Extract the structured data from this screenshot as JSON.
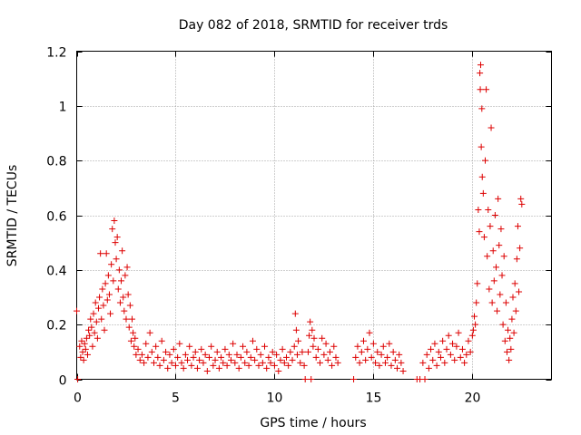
{
  "chart_data": {
    "type": "scatter",
    "title": "Day 082 of 2018, SRMTID for receiver trds",
    "xlabel": "GPS time / hours",
    "ylabel": "SRMTID / TECUs",
    "xlim": [
      0,
      24
    ],
    "ylim": [
      0,
      1.2
    ],
    "xticks": [
      0,
      5,
      10,
      15,
      20
    ],
    "xtick_labels": [
      "0",
      "5",
      "10",
      "15",
      "20"
    ],
    "yticks": [
      0,
      0.2,
      0.4,
      0.6,
      0.8,
      1.0,
      1.2
    ],
    "ytick_labels": [
      "0",
      "0.2",
      "0.4",
      "0.6",
      "0.8",
      "1",
      "1.2"
    ],
    "grid": true,
    "marker": "+",
    "marker_color": "#dd0000",
    "series": [
      {
        "name": "SRMTID",
        "points": [
          [
            0.0,
            0.25
          ],
          [
            0.05,
            0.0
          ],
          [
            0.15,
            0.12
          ],
          [
            0.2,
            0.08
          ],
          [
            0.25,
            0.14
          ],
          [
            0.3,
            0.1
          ],
          [
            0.35,
            0.07
          ],
          [
            0.4,
            0.13
          ],
          [
            0.45,
            0.11
          ],
          [
            0.5,
            0.15
          ],
          [
            0.55,
            0.09
          ],
          [
            0.6,
            0.18
          ],
          [
            0.65,
            0.16
          ],
          [
            0.7,
            0.22
          ],
          [
            0.75,
            0.19
          ],
          [
            0.8,
            0.12
          ],
          [
            0.85,
            0.24
          ],
          [
            0.9,
            0.17
          ],
          [
            0.95,
            0.28
          ],
          [
            1.0,
            0.21
          ],
          [
            1.05,
            0.15
          ],
          [
            1.1,
            0.26
          ],
          [
            1.15,
            0.3
          ],
          [
            1.2,
            0.46
          ],
          [
            1.25,
            0.22
          ],
          [
            1.3,
            0.33
          ],
          [
            1.35,
            0.27
          ],
          [
            1.4,
            0.18
          ],
          [
            1.45,
            0.35
          ],
          [
            1.5,
            0.46
          ],
          [
            1.55,
            0.29
          ],
          [
            1.6,
            0.38
          ],
          [
            1.65,
            0.31
          ],
          [
            1.7,
            0.24
          ],
          [
            1.75,
            0.42
          ],
          [
            1.8,
            0.55
          ],
          [
            1.85,
            0.36
          ],
          [
            1.9,
            0.58
          ],
          [
            1.95,
            0.5
          ],
          [
            2.0,
            0.44
          ],
          [
            2.05,
            0.52
          ],
          [
            2.1,
            0.33
          ],
          [
            2.15,
            0.4
          ],
          [
            2.2,
            0.28
          ],
          [
            2.25,
            0.36
          ],
          [
            2.3,
            0.47
          ],
          [
            2.35,
            0.3
          ],
          [
            2.4,
            0.25
          ],
          [
            2.45,
            0.38
          ],
          [
            2.5,
            0.22
          ],
          [
            2.55,
            0.41
          ],
          [
            2.6,
            0.31
          ],
          [
            2.65,
            0.19
          ],
          [
            2.7,
            0.27
          ],
          [
            2.75,
            0.14
          ],
          [
            2.8,
            0.22
          ],
          [
            2.85,
            0.17
          ],
          [
            2.9,
            0.12
          ],
          [
            2.95,
            0.15
          ],
          [
            3.0,
            0.09
          ],
          [
            3.1,
            0.11
          ],
          [
            3.2,
            0.07
          ],
          [
            3.3,
            0.09
          ],
          [
            3.4,
            0.06
          ],
          [
            3.5,
            0.13
          ],
          [
            3.6,
            0.08
          ],
          [
            3.7,
            0.17
          ],
          [
            3.8,
            0.1
          ],
          [
            3.9,
            0.06
          ],
          [
            4.0,
            0.12
          ],
          [
            4.1,
            0.08
          ],
          [
            4.2,
            0.05
          ],
          [
            4.3,
            0.14
          ],
          [
            4.4,
            0.07
          ],
          [
            4.5,
            0.1
          ],
          [
            4.6,
            0.04
          ],
          [
            4.7,
            0.09
          ],
          [
            4.8,
            0.06
          ],
          [
            4.9,
            0.11
          ],
          [
            5.0,
            0.05
          ],
          [
            5.1,
            0.08
          ],
          [
            5.2,
            0.13
          ],
          [
            5.3,
            0.06
          ],
          [
            5.4,
            0.04
          ],
          [
            5.5,
            0.09
          ],
          [
            5.6,
            0.07
          ],
          [
            5.7,
            0.12
          ],
          [
            5.8,
            0.05
          ],
          [
            5.9,
            0.08
          ],
          [
            6.0,
            0.1
          ],
          [
            6.1,
            0.04
          ],
          [
            6.2,
            0.07
          ],
          [
            6.3,
            0.11
          ],
          [
            6.4,
            0.06
          ],
          [
            6.5,
            0.09
          ],
          [
            6.6,
            0.03
          ],
          [
            6.7,
            0.08
          ],
          [
            6.8,
            0.12
          ],
          [
            6.9,
            0.05
          ],
          [
            7.0,
            0.07
          ],
          [
            7.1,
            0.1
          ],
          [
            7.2,
            0.04
          ],
          [
            7.3,
            0.08
          ],
          [
            7.4,
            0.06
          ],
          [
            7.5,
            0.11
          ],
          [
            7.6,
            0.05
          ],
          [
            7.7,
            0.09
          ],
          [
            7.8,
            0.07
          ],
          [
            7.9,
            0.13
          ],
          [
            8.0,
            0.06
          ],
          [
            8.1,
            0.09
          ],
          [
            8.2,
            0.04
          ],
          [
            8.3,
            0.08
          ],
          [
            8.4,
            0.12
          ],
          [
            8.5,
            0.06
          ],
          [
            8.6,
            0.1
          ],
          [
            8.7,
            0.05
          ],
          [
            8.8,
            0.08
          ],
          [
            8.9,
            0.14
          ],
          [
            9.0,
            0.07
          ],
          [
            9.1,
            0.11
          ],
          [
            9.2,
            0.05
          ],
          [
            9.3,
            0.09
          ],
          [
            9.4,
            0.06
          ],
          [
            9.5,
            0.12
          ],
          [
            9.6,
            0.04
          ],
          [
            9.7,
            0.08
          ],
          [
            9.8,
            0.06
          ],
          [
            9.9,
            0.1
          ],
          [
            10.0,
            0.05
          ],
          [
            10.1,
            0.09
          ],
          [
            10.2,
            0.03
          ],
          [
            10.3,
            0.07
          ],
          [
            10.4,
            0.11
          ],
          [
            10.5,
            0.06
          ],
          [
            10.6,
            0.08
          ],
          [
            10.7,
            0.05
          ],
          [
            10.8,
            0.1
          ],
          [
            10.9,
            0.07
          ],
          [
            11.0,
            0.12
          ],
          [
            11.05,
            0.24
          ],
          [
            11.1,
            0.18
          ],
          [
            11.15,
            0.09
          ],
          [
            11.2,
            0.14
          ],
          [
            11.3,
            0.06
          ],
          [
            11.4,
            0.1
          ],
          [
            11.5,
            0.05
          ],
          [
            11.55,
            0.0
          ],
          [
            11.7,
            0.1
          ],
          [
            11.75,
            0.16
          ],
          [
            11.8,
            0.21
          ],
          [
            11.85,
            0.0
          ],
          [
            11.9,
            0.18
          ],
          [
            11.95,
            0.12
          ],
          [
            12.0,
            0.15
          ],
          [
            12.1,
            0.08
          ],
          [
            12.2,
            0.11
          ],
          [
            12.3,
            0.06
          ],
          [
            12.4,
            0.15
          ],
          [
            12.5,
            0.09
          ],
          [
            12.6,
            0.13
          ],
          [
            12.7,
            0.07
          ],
          [
            12.8,
            0.1
          ],
          [
            12.9,
            0.05
          ],
          [
            13.0,
            0.12
          ],
          [
            13.1,
            0.08
          ],
          [
            13.2,
            0.06
          ],
          [
            14.0,
            0.0
          ],
          [
            14.1,
            0.08
          ],
          [
            14.2,
            0.12
          ],
          [
            14.3,
            0.06
          ],
          [
            14.4,
            0.1
          ],
          [
            14.5,
            0.14
          ],
          [
            14.6,
            0.07
          ],
          [
            14.7,
            0.11
          ],
          [
            14.8,
            0.17
          ],
          [
            14.9,
            0.08
          ],
          [
            15.0,
            0.13
          ],
          [
            15.1,
            0.06
          ],
          [
            15.2,
            0.1
          ],
          [
            15.3,
            0.05
          ],
          [
            15.4,
            0.09
          ],
          [
            15.5,
            0.12
          ],
          [
            15.6,
            0.06
          ],
          [
            15.7,
            0.08
          ],
          [
            15.8,
            0.13
          ],
          [
            15.9,
            0.05
          ],
          [
            16.0,
            0.1
          ],
          [
            16.1,
            0.07
          ],
          [
            16.2,
            0.04
          ],
          [
            16.3,
            0.09
          ],
          [
            16.4,
            0.06
          ],
          [
            16.5,
            0.03
          ],
          [
            17.2,
            0.0
          ],
          [
            17.35,
            0.0
          ],
          [
            17.5,
            0.06
          ],
          [
            17.6,
            0.0
          ],
          [
            17.7,
            0.09
          ],
          [
            17.8,
            0.04
          ],
          [
            17.9,
            0.11
          ],
          [
            18.0,
            0.07
          ],
          [
            18.1,
            0.13
          ],
          [
            18.2,
            0.05
          ],
          [
            18.3,
            0.1
          ],
          [
            18.4,
            0.08
          ],
          [
            18.5,
            0.14
          ],
          [
            18.6,
            0.06
          ],
          [
            18.7,
            0.11
          ],
          [
            18.8,
            0.16
          ],
          [
            18.9,
            0.09
          ],
          [
            19.0,
            0.13
          ],
          [
            19.1,
            0.07
          ],
          [
            19.2,
            0.12
          ],
          [
            19.3,
            0.17
          ],
          [
            19.4,
            0.08
          ],
          [
            19.5,
            0.11
          ],
          [
            19.6,
            0.06
          ],
          [
            19.7,
            0.09
          ],
          [
            19.8,
            0.14
          ],
          [
            19.9,
            0.1
          ],
          [
            20.0,
            0.16
          ],
          [
            20.05,
            0.18
          ],
          [
            20.1,
            0.23
          ],
          [
            20.15,
            0.2
          ],
          [
            20.2,
            0.28
          ],
          [
            20.25,
            0.35
          ],
          [
            20.3,
            0.62
          ],
          [
            20.35,
            0.54
          ],
          [
            20.38,
            1.12
          ],
          [
            20.4,
            1.06
          ],
          [
            20.42,
            1.15
          ],
          [
            20.45,
            0.85
          ],
          [
            20.48,
            0.99
          ],
          [
            20.5,
            0.74
          ],
          [
            20.55,
            0.68
          ],
          [
            20.6,
            0.52
          ],
          [
            20.65,
            0.8
          ],
          [
            20.7,
            1.06
          ],
          [
            20.75,
            0.45
          ],
          [
            20.8,
            0.62
          ],
          [
            20.85,
            0.33
          ],
          [
            20.9,
            0.56
          ],
          [
            20.95,
            0.92
          ],
          [
            21.0,
            0.28
          ],
          [
            21.05,
            0.47
          ],
          [
            21.1,
            0.36
          ],
          [
            21.15,
            0.6
          ],
          [
            21.2,
            0.41
          ],
          [
            21.25,
            0.25
          ],
          [
            21.3,
            0.66
          ],
          [
            21.35,
            0.49
          ],
          [
            21.4,
            0.31
          ],
          [
            21.45,
            0.55
          ],
          [
            21.5,
            0.38
          ],
          [
            21.55,
            0.2
          ],
          [
            21.6,
            0.45
          ],
          [
            21.65,
            0.14
          ],
          [
            21.7,
            0.28
          ],
          [
            21.75,
            0.1
          ],
          [
            21.8,
            0.18
          ],
          [
            21.85,
            0.07
          ],
          [
            21.9,
            0.15
          ],
          [
            21.95,
            0.11
          ],
          [
            22.0,
            0.22
          ],
          [
            22.05,
            0.3
          ],
          [
            22.1,
            0.17
          ],
          [
            22.15,
            0.35
          ],
          [
            22.2,
            0.25
          ],
          [
            22.25,
            0.44
          ],
          [
            22.3,
            0.56
          ],
          [
            22.35,
            0.32
          ],
          [
            22.4,
            0.48
          ],
          [
            22.45,
            0.66
          ],
          [
            22.5,
            0.64
          ]
        ]
      }
    ]
  }
}
